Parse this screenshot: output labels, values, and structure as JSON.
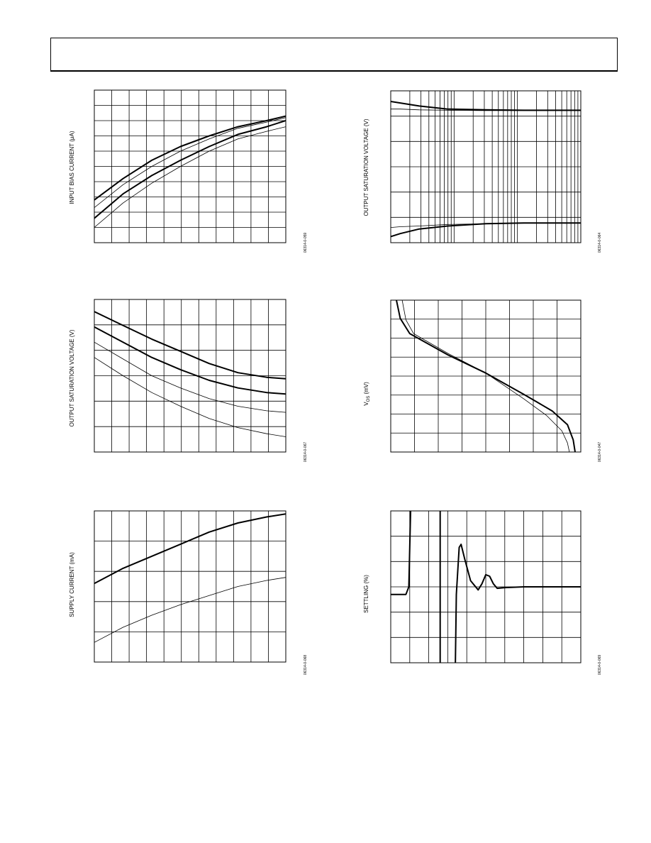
{
  "page": {
    "header_text": ""
  },
  "charts": [
    {
      "id": "bias",
      "ylabel": "INPUT BIAS CURRENT (μA)",
      "ylabel_html": "INPUT BIAS CURRENT (μA)",
      "figure_id": "06314-0-059"
    },
    {
      "id": "osv-top",
      "ylabel": "OUTPUT SATURATION VOLTAGE (V)",
      "figure_id": "06314-0-064"
    },
    {
      "id": "osv-mid",
      "ylabel": "OUTPUT SATURATION VOLTAGE (V)",
      "figure_id": "06314-0-067"
    },
    {
      "id": "vos",
      "ylabel": "VOS (mV)",
      "figure_id": "06314-0-047"
    },
    {
      "id": "supply",
      "ylabel": "SUPPLY CURRENT (mA)",
      "figure_id": "06314-0-068"
    },
    {
      "id": "settling",
      "ylabel": "SETTLING (%)",
      "figure_id": "06314-0-069"
    }
  ],
  "chart_data": [
    {
      "type": "line",
      "name": "bias",
      "grid": true,
      "grid_x_divisions": 11,
      "grid_y_divisions": 10,
      "xlim": [
        0,
        1
      ],
      "ylim": [
        0,
        1
      ],
      "series": [
        {
          "weight": "thick",
          "values": [
            [
              0,
              0.28
            ],
            [
              0.15,
              0.42
            ],
            [
              0.3,
              0.54
            ],
            [
              0.45,
              0.63
            ],
            [
              0.6,
              0.7
            ],
            [
              0.75,
              0.76
            ],
            [
              0.9,
              0.8
            ],
            [
              1,
              0.83
            ]
          ]
        },
        {
          "weight": "thin",
          "values": [
            [
              0,
              0.23
            ],
            [
              0.15,
              0.38
            ],
            [
              0.3,
              0.5
            ],
            [
              0.45,
              0.6
            ],
            [
              0.6,
              0.68
            ],
            [
              0.75,
              0.75
            ],
            [
              0.9,
              0.79
            ],
            [
              1,
              0.82
            ]
          ]
        },
        {
          "weight": "thick",
          "values": [
            [
              0,
              0.16
            ],
            [
              0.15,
              0.32
            ],
            [
              0.3,
              0.44
            ],
            [
              0.45,
              0.54
            ],
            [
              0.6,
              0.63
            ],
            [
              0.75,
              0.71
            ],
            [
              0.9,
              0.76
            ],
            [
              1,
              0.8
            ]
          ]
        },
        {
          "weight": "thin",
          "values": [
            [
              0,
              0.1
            ],
            [
              0.15,
              0.26
            ],
            [
              0.3,
              0.39
            ],
            [
              0.45,
              0.5
            ],
            [
              0.6,
              0.6
            ],
            [
              0.75,
              0.68
            ],
            [
              0.9,
              0.73
            ],
            [
              1,
              0.76
            ]
          ]
        }
      ]
    },
    {
      "type": "line",
      "name": "osv-top",
      "xscale": "log",
      "grid": true,
      "grid_x_divisions": "log-3-decades",
      "grid_y_divisions": 6,
      "xlim": [
        0,
        1
      ],
      "ylim": [
        0,
        1
      ],
      "series": [
        {
          "weight": "thick",
          "values": [
            [
              0,
              0.93
            ],
            [
              0.05,
              0.92
            ],
            [
              0.15,
              0.9
            ],
            [
              0.3,
              0.88
            ],
            [
              0.5,
              0.875
            ],
            [
              0.7,
              0.872
            ],
            [
              1,
              0.872
            ]
          ]
        },
        {
          "weight": "thin",
          "values": [
            [
              0,
              0.88
            ],
            [
              0.05,
              0.88
            ],
            [
              0.15,
              0.875
            ],
            [
              0.3,
              0.872
            ],
            [
              0.5,
              0.87
            ],
            [
              0.7,
              0.87
            ],
            [
              1,
              0.87
            ]
          ]
        },
        {
          "weight": "thick",
          "values": [
            [
              0,
              0.04
            ],
            [
              0.05,
              0.06
            ],
            [
              0.15,
              0.09
            ],
            [
              0.3,
              0.11
            ],
            [
              0.5,
              0.125
            ],
            [
              0.7,
              0.13
            ],
            [
              1,
              0.13
            ]
          ]
        },
        {
          "weight": "thin",
          "values": [
            [
              0,
              0.1
            ],
            [
              0.05,
              0.105
            ],
            [
              0.15,
              0.11
            ],
            [
              0.3,
              0.12
            ],
            [
              0.5,
              0.125
            ],
            [
              0.7,
              0.13
            ],
            [
              1,
              0.13
            ]
          ]
        }
      ]
    },
    {
      "type": "line",
      "name": "osv-mid",
      "grid": true,
      "grid_x_divisions": 11,
      "grid_y_divisions": 6,
      "xlim": [
        0,
        1
      ],
      "ylim": [
        0,
        1
      ],
      "series": [
        {
          "weight": "thick",
          "values": [
            [
              0,
              0.92
            ],
            [
              0.15,
              0.83
            ],
            [
              0.3,
              0.74
            ],
            [
              0.45,
              0.66
            ],
            [
              0.6,
              0.58
            ],
            [
              0.75,
              0.52
            ],
            [
              0.9,
              0.49
            ],
            [
              1,
              0.48
            ]
          ]
        },
        {
          "weight": "thick",
          "values": [
            [
              0,
              0.82
            ],
            [
              0.15,
              0.72
            ],
            [
              0.3,
              0.62
            ],
            [
              0.45,
              0.54
            ],
            [
              0.6,
              0.47
            ],
            [
              0.75,
              0.42
            ],
            [
              0.9,
              0.39
            ],
            [
              1,
              0.38
            ]
          ]
        },
        {
          "weight": "thin",
          "values": [
            [
              0,
              0.72
            ],
            [
              0.15,
              0.61
            ],
            [
              0.3,
              0.5
            ],
            [
              0.45,
              0.42
            ],
            [
              0.6,
              0.35
            ],
            [
              0.75,
              0.3
            ],
            [
              0.9,
              0.27
            ],
            [
              1,
              0.26
            ]
          ]
        },
        {
          "weight": "thin",
          "values": [
            [
              0,
              0.62
            ],
            [
              0.15,
              0.5
            ],
            [
              0.3,
              0.39
            ],
            [
              0.45,
              0.3
            ],
            [
              0.6,
              0.22
            ],
            [
              0.75,
              0.16
            ],
            [
              0.9,
              0.12
            ],
            [
              1,
              0.1
            ]
          ]
        }
      ]
    },
    {
      "type": "line",
      "name": "vos",
      "grid": true,
      "grid_x_divisions": 8,
      "grid_y_divisions": 8,
      "xlim": [
        0,
        1
      ],
      "ylim": [
        0,
        1
      ],
      "series": [
        {
          "weight": "thick",
          "values": [
            [
              0.03,
              1
            ],
            [
              0.05,
              0.88
            ],
            [
              0.1,
              0.78
            ],
            [
              0.3,
              0.64
            ],
            [
              0.5,
              0.52
            ],
            [
              0.7,
              0.38
            ],
            [
              0.85,
              0.27
            ],
            [
              0.93,
              0.18
            ],
            [
              0.96,
              0.08
            ],
            [
              0.97,
              0
            ]
          ]
        },
        {
          "weight": "thin",
          "values": [
            [
              0.06,
              1
            ],
            [
              0.08,
              0.87
            ],
            [
              0.12,
              0.78
            ],
            [
              0.3,
              0.65
            ],
            [
              0.5,
              0.52
            ],
            [
              0.7,
              0.35
            ],
            [
              0.82,
              0.24
            ],
            [
              0.9,
              0.14
            ],
            [
              0.93,
              0.06
            ],
            [
              0.94,
              0
            ]
          ]
        }
      ]
    },
    {
      "type": "line",
      "name": "supply",
      "grid": true,
      "grid_x_divisions": 11,
      "grid_y_divisions": 5,
      "xlim": [
        0,
        1
      ],
      "ylim": [
        0,
        1
      ],
      "series": [
        {
          "weight": "thick",
          "values": [
            [
              0,
              0.52
            ],
            [
              0.15,
              0.62
            ],
            [
              0.3,
              0.7
            ],
            [
              0.45,
              0.78
            ],
            [
              0.6,
              0.86
            ],
            [
              0.75,
              0.92
            ],
            [
              0.9,
              0.96
            ],
            [
              1,
              0.98
            ]
          ]
        },
        {
          "weight": "thin",
          "values": [
            [
              0,
              0.13
            ],
            [
              0.15,
              0.23
            ],
            [
              0.3,
              0.31
            ],
            [
              0.45,
              0.38
            ],
            [
              0.6,
              0.44
            ],
            [
              0.75,
              0.5
            ],
            [
              0.9,
              0.54
            ],
            [
              1,
              0.56
            ]
          ]
        }
      ]
    },
    {
      "type": "line",
      "name": "settling",
      "grid": true,
      "grid_x_divisions": 10,
      "grid_y_divisions": 6,
      "xlim": [
        0,
        1
      ],
      "ylim": [
        0,
        1
      ],
      "series": [
        {
          "weight": "thick",
          "values": [
            [
              0,
              0.45
            ],
            [
              0.08,
              0.45
            ],
            [
              0.095,
              0.5
            ],
            [
              0.105,
              1.02
            ]
          ]
        },
        {
          "weight": "thick",
          "values": [
            [
              0.26,
              1.02
            ],
            [
              0.26,
              -0.02
            ]
          ]
        },
        {
          "weight": "thick",
          "values": [
            [
              0.34,
              -0.02
            ],
            [
              0.345,
              0.45
            ],
            [
              0.36,
              0.76
            ],
            [
              0.37,
              0.78
            ],
            [
              0.39,
              0.68
            ],
            [
              0.42,
              0.54
            ],
            [
              0.46,
              0.48
            ],
            [
              0.48,
              0.52
            ],
            [
              0.5,
              0.58
            ],
            [
              0.52,
              0.57
            ],
            [
              0.54,
              0.52
            ],
            [
              0.56,
              0.49
            ],
            [
              0.6,
              0.495
            ],
            [
              0.7,
              0.5
            ],
            [
              1,
              0.5
            ]
          ]
        }
      ]
    }
  ]
}
